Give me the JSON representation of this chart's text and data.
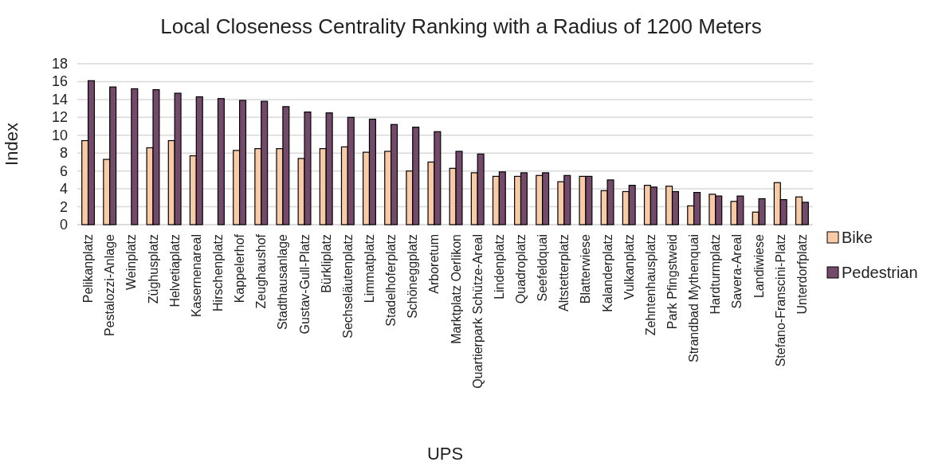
{
  "chart_data": {
    "type": "bar",
    "title": "Local Closeness Centrality Ranking with a Radius of 1200 Meters",
    "xlabel": "UPS",
    "ylabel": "Index",
    "categories": [
      "Pelikanplatz",
      "Pestalozzi-Anlage",
      "Weinplatz",
      "Züghusplatz",
      "Helvetiaplatz",
      "Kasernenareal",
      "Hirschenplatz",
      "Kappelerhof",
      "Zeughaushof",
      "Stadthausanlage",
      "Gustav-Gull-Platz",
      "Bürkliplatz",
      "Sechseläutenplatz",
      "Limmatplatz",
      "Stadelhoferplatz",
      "Schöneggplatz",
      "Arboretum",
      "Marktplatz Oerlikon",
      "Quartierpark Schütze-Areal",
      "Lindenplatz",
      "Quadroplatz",
      "Seefeldquai",
      "Altstetterplatz",
      "Blatterwiese",
      "Kalanderplatz",
      "Vulkanplatz",
      "Zehntenhausplatz",
      "Park Pfingstweid",
      "Strandbad Mythenquai",
      "Hardturmplatz",
      "Savera-Areal",
      "Landiwiese",
      "Stefano-Franscini-Platz",
      "Unterdorfplatz"
    ],
    "series": [
      {
        "name": "Bike",
        "color": "#f8cba6",
        "values": [
          9.4,
          7.3,
          null,
          8.6,
          9.4,
          7.7,
          null,
          8.3,
          8.5,
          8.5,
          7.4,
          8.5,
          8.7,
          8.1,
          8.2,
          6.0,
          7.0,
          6.3,
          5.8,
          5.4,
          5.4,
          5.5,
          4.8,
          5.4,
          3.8,
          3.7,
          4.4,
          4.3,
          2.1,
          3.4,
          2.6,
          1.4,
          4.7,
          3.1
        ]
      },
      {
        "name": "Pedestrian",
        "color": "#744a6a",
        "values": [
          16.1,
          15.4,
          15.2,
          15.1,
          14.7,
          14.3,
          14.1,
          13.9,
          13.8,
          13.2,
          12.6,
          12.5,
          12.0,
          11.8,
          11.2,
          10.9,
          10.4,
          8.2,
          7.9,
          5.9,
          5.8,
          5.8,
          5.5,
          5.4,
          5.0,
          4.4,
          4.2,
          3.7,
          3.6,
          3.2,
          3.2,
          2.9,
          2.8,
          2.5
        ]
      }
    ],
    "ylim": [
      0,
      18
    ],
    "yticks": [
      0,
      2,
      4,
      6,
      8,
      10,
      12,
      14,
      16,
      18
    ],
    "grid": "y",
    "legend": "right"
  }
}
